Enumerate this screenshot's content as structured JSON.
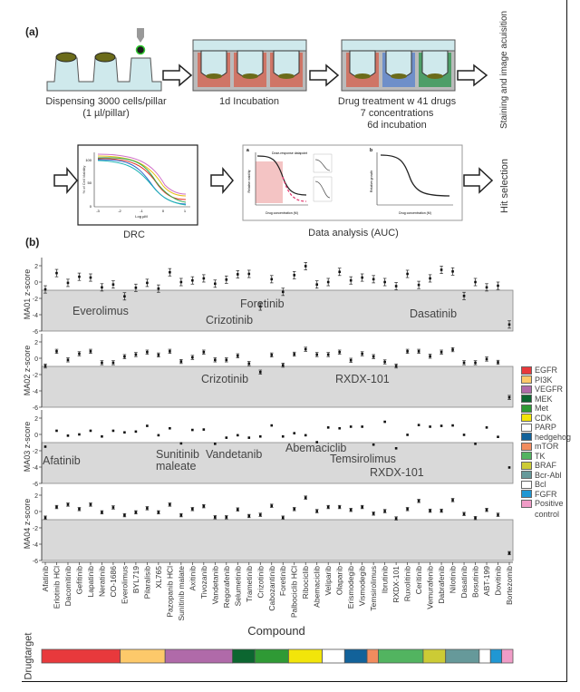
{
  "panel_a": {
    "label": "(a)",
    "step1_caption_1": "Dispensing 3000 cells/pillar",
    "step1_caption_2": "(1 µl/pillar)",
    "step2_caption": "1d Incubation",
    "step3_caption_1": "Drug treatment w 41 drugs",
    "step3_caption_2": "7 concentrations",
    "step3_caption_3": "6d incubation",
    "step4_caption": "Staining and image acuisition",
    "drc_caption": "DRC",
    "drc_ylabel": "% of Cell Viability",
    "drc_xlabel": "Log µM",
    "drc_yticks": [
      "100",
      "50",
      "0"
    ],
    "drc_xticks": [
      "-3",
      "-2",
      "-1",
      "0",
      "1"
    ],
    "analysis_caption": "Data analysis (AUC)",
    "analysis_a_label": "a",
    "analysis_b_label": "b",
    "analysis_legend": "Dose-response datapoint",
    "analysis_xlabel": "Drug concentration (M)",
    "analysis_a_ylabel": "Relative viability",
    "analysis_b_ylabel": "Relative growth",
    "hit_caption": "Hit selection"
  },
  "panel_b": {
    "label": "(b)",
    "xlabel": "Compound",
    "drugtarget_label": "Drugtarget",
    "legend_control_line2": "control"
  },
  "chart_data": {
    "type": "scatter",
    "xlabel": "Compound",
    "ylim": [
      -6,
      3
    ],
    "yticks": [
      2,
      0,
      -2,
      -4,
      -6
    ],
    "shaded_region": [
      -6,
      -1
    ],
    "categories": [
      "Afatinib",
      "Erlotinib HCl",
      "Dacomitinib",
      "Gefitinib",
      "Lapatinib",
      "Neratinib",
      "CO-1686",
      "Everolimus",
      "BYL719",
      "Pilaralisib",
      "XL765",
      "Pazopanib HCl",
      "Sunitinib malate",
      "Axitinib",
      "Tivozanib",
      "Vandetanib",
      "Regorafenib",
      "Selumetinib",
      "Trametinib",
      "Crizotinib",
      "Cabozantinib",
      "Foretinib",
      "Palbociclib HCl",
      "Ribociclib",
      "Abemaciclib",
      "Veliparib",
      "Olaparib",
      "Erismodegib",
      "Vismodegib",
      "Temsirolimus",
      "Ibrutinib",
      "RXDX-101",
      "Ruxolitinib",
      "Ceritinib",
      "Vemurafenib",
      "Dabrafenib",
      "Nilotinib",
      "Dasatinib",
      "Bosutinib",
      "ABT-199",
      "Dovitinib",
      "Bortezomib"
    ],
    "series": [
      {
        "name": "MA01",
        "ylabel": "MA01 z-score",
        "values": [
          -0.9,
          1.1,
          -0.1,
          0.65,
          0.55,
          -0.65,
          -0.3,
          -1.75,
          -0.7,
          -0.1,
          -0.8,
          1.2,
          0,
          0.2,
          0.45,
          -0.2,
          0.3,
          0.95,
          1.0,
          -3.0,
          0.35,
          -1.2,
          0.85,
          1.95,
          -0.3,
          0,
          1.25,
          0.2,
          0.55,
          0.35,
          0,
          -0.5,
          1.0,
          -0.35,
          0.45,
          1.5,
          1.3,
          -1.7,
          0,
          -0.65,
          -0.45,
          -5.2
        ],
        "annotations": [
          "Everolimus",
          "Crizotinib",
          "Foretinib",
          "Dasatinib"
        ]
      },
      {
        "name": "MA02",
        "ylabel": "MA02 z-score",
        "values": [
          -0.95,
          0.85,
          -0.2,
          0.55,
          0.85,
          -0.55,
          -0.55,
          0.2,
          0.45,
          0.75,
          0.4,
          0.85,
          -0.4,
          0.1,
          0.75,
          -0.2,
          -0.2,
          0.3,
          -0.65,
          -1.7,
          0.4,
          -0.85,
          0.5,
          1.1,
          0.45,
          0.45,
          0.75,
          -0.25,
          0.55,
          0.2,
          -0.45,
          -0.95,
          0.85,
          0.85,
          0.25,
          0.75,
          1.05,
          -0.55,
          -0.55,
          -0.1,
          -0.5,
          -4.8
        ],
        "annotations": [
          "Crizotinib",
          "RXDX-101"
        ]
      },
      {
        "name": "MA03",
        "ylabel": "MA03 z-score",
        "values": [
          -1.5,
          0.45,
          -0.15,
          0,
          0.45,
          -0.25,
          0.45,
          0.25,
          0.35,
          1.05,
          -0.1,
          0.75,
          -1.1,
          0.55,
          0.6,
          -1.15,
          -0.4,
          -0.1,
          -0.4,
          -0.25,
          1.1,
          -0.25,
          0.15,
          -0.1,
          -0.95,
          0.85,
          0.75,
          0.95,
          0.95,
          -1.25,
          1.55,
          -1.7,
          -0.05,
          1.15,
          0.95,
          1.05,
          1.1,
          -0.05,
          -1.15,
          0.85,
          -0.3,
          -4.05
        ],
        "annotations": [
          "Afatinib",
          "Sunitinib",
          "maleate",
          "Vandetanib",
          "Abemaciclib",
          "Temsirolimus",
          "RXDX-101"
        ]
      },
      {
        "name": "MA04",
        "ylabel": "MA04 z-score",
        "values": [
          -0.75,
          0.55,
          0.85,
          0.3,
          0.85,
          -0.1,
          0.5,
          -0.45,
          -0.1,
          0.4,
          -0.1,
          0.85,
          -0.45,
          0.3,
          0.65,
          -0.7,
          -0.7,
          0.25,
          -0.55,
          -0.4,
          0.7,
          -0.75,
          0.3,
          1.7,
          0.05,
          0.55,
          0.55,
          0.2,
          0.55,
          -0.25,
          0.05,
          -0.85,
          0.3,
          1.3,
          0.1,
          0.1,
          1.4,
          -0.3,
          -0.8,
          0.2,
          -0.4,
          -5.1
        ],
        "annotations": []
      }
    ],
    "drug_targets": [
      {
        "name": "EGFR",
        "color": "#e8393c",
        "count": 7
      },
      {
        "name": "PI3K",
        "color": "#fdc96a",
        "count": 4
      },
      {
        "name": "VEGFR",
        "color": "#b06aa9",
        "count": 6
      },
      {
        "name": "MEK",
        "color": "#0c6630",
        "count": 2
      },
      {
        "name": "Met",
        "color": "#2f9a35",
        "count": 3
      },
      {
        "name": "CDK",
        "color": "#f2e50a",
        "count": 3
      },
      {
        "name": "PARP",
        "color": "#ffffff",
        "count": 2
      },
      {
        "name": "hedgehog",
        "color": "#12629a",
        "count": 2
      },
      {
        "name": "mTOR",
        "color": "#f28c5e",
        "count": 1
      },
      {
        "name": "TK",
        "color": "#52b460",
        "count": 4
      },
      {
        "name": "BRAF",
        "color": "#cccb35",
        "count": 2
      },
      {
        "name": "Bcr-Abl",
        "color": "#66999a",
        "count": 3
      },
      {
        "name": "Bcl",
        "color": "#ffffff",
        "count": 1
      },
      {
        "name": "FGFR",
        "color": "#2097d3",
        "count": 1
      },
      {
        "name": "Positive",
        "color": "#f09cc7",
        "count": 1
      }
    ]
  }
}
